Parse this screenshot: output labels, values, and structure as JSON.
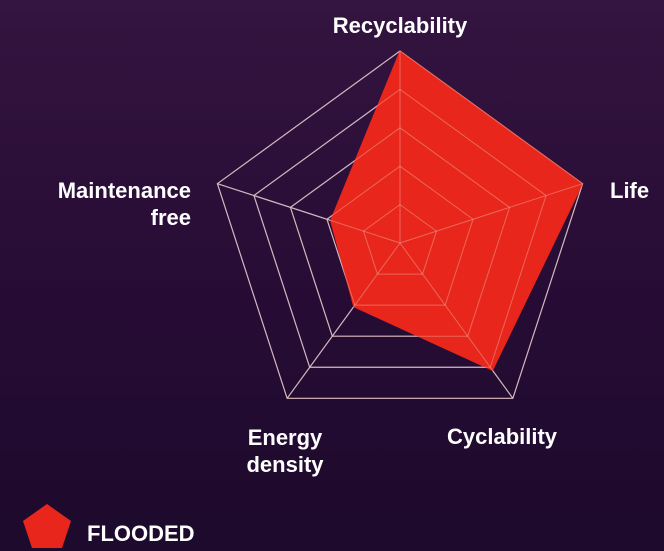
{
  "chart_data": {
    "type": "radar",
    "title": "",
    "axes": [
      [
        "Recyclability"
      ],
      [
        "Life"
      ],
      [
        "Cyclability"
      ],
      [
        "Energy",
        "density"
      ],
      [
        "Maintenance",
        "free"
      ]
    ],
    "scale": {
      "min": 0,
      "max": 5,
      "rings": 5
    },
    "series": [
      {
        "name": "FLOODED",
        "color": "#e8261c",
        "values": [
          5,
          5,
          4.1,
          2.05,
          1.9
        ]
      }
    ],
    "grid": true,
    "grid_color": "#d2c6da",
    "legend_position": "bottom-left"
  }
}
